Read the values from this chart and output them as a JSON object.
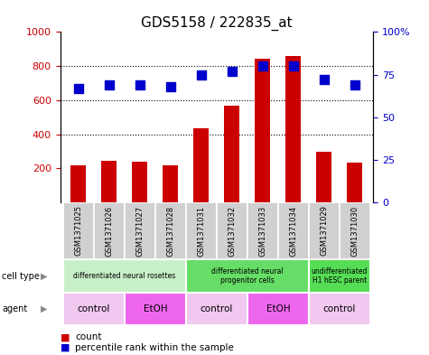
{
  "title": "GDS5158 / 222835_at",
  "samples": [
    "GSM1371025",
    "GSM1371026",
    "GSM1371027",
    "GSM1371028",
    "GSM1371031",
    "GSM1371032",
    "GSM1371033",
    "GSM1371034",
    "GSM1371029",
    "GSM1371030"
  ],
  "counts": [
    215,
    245,
    240,
    215,
    435,
    565,
    845,
    860,
    295,
    235
  ],
  "percentile": [
    67,
    69,
    69,
    68,
    75,
    77,
    80,
    80,
    72,
    69
  ],
  "ylim_left": [
    0,
    1000
  ],
  "ylim_right": [
    0,
    100
  ],
  "yticks_left": [
    200,
    400,
    600,
    800,
    1000
  ],
  "yticks_right": [
    0,
    25,
    50,
    75,
    100
  ],
  "cell_type_groups": [
    {
      "label": "differentiated neural rosettes",
      "start": 0,
      "end": 4,
      "color": "#c8f0c8"
    },
    {
      "label": "differentiated neural\nprogenitor cells",
      "start": 4,
      "end": 8,
      "color": "#66dd66"
    },
    {
      "label": "undifferentiated\nH1 hESC parent",
      "start": 8,
      "end": 10,
      "color": "#55dd55"
    }
  ],
  "agent_groups": [
    {
      "label": "control",
      "start": 0,
      "end": 2,
      "color": "#f0c8f0"
    },
    {
      "label": "EtOH",
      "start": 2,
      "end": 4,
      "color": "#ee66ee"
    },
    {
      "label": "control",
      "start": 4,
      "end": 6,
      "color": "#f0c8f0"
    },
    {
      "label": "EtOH",
      "start": 6,
      "end": 8,
      "color": "#ee66ee"
    },
    {
      "label": "control",
      "start": 8,
      "end": 10,
      "color": "#f0c8f0"
    }
  ],
  "bar_color": "#cc0000",
  "dot_color": "#0000cc",
  "grid_color": "#000000",
  "bg_color": "#ffffff",
  "label_color_left": "#cc0000",
  "label_color_right": "#0000cc",
  "sample_box_color": "#d0d0d0",
  "bar_width": 0.5,
  "dot_size": 45
}
